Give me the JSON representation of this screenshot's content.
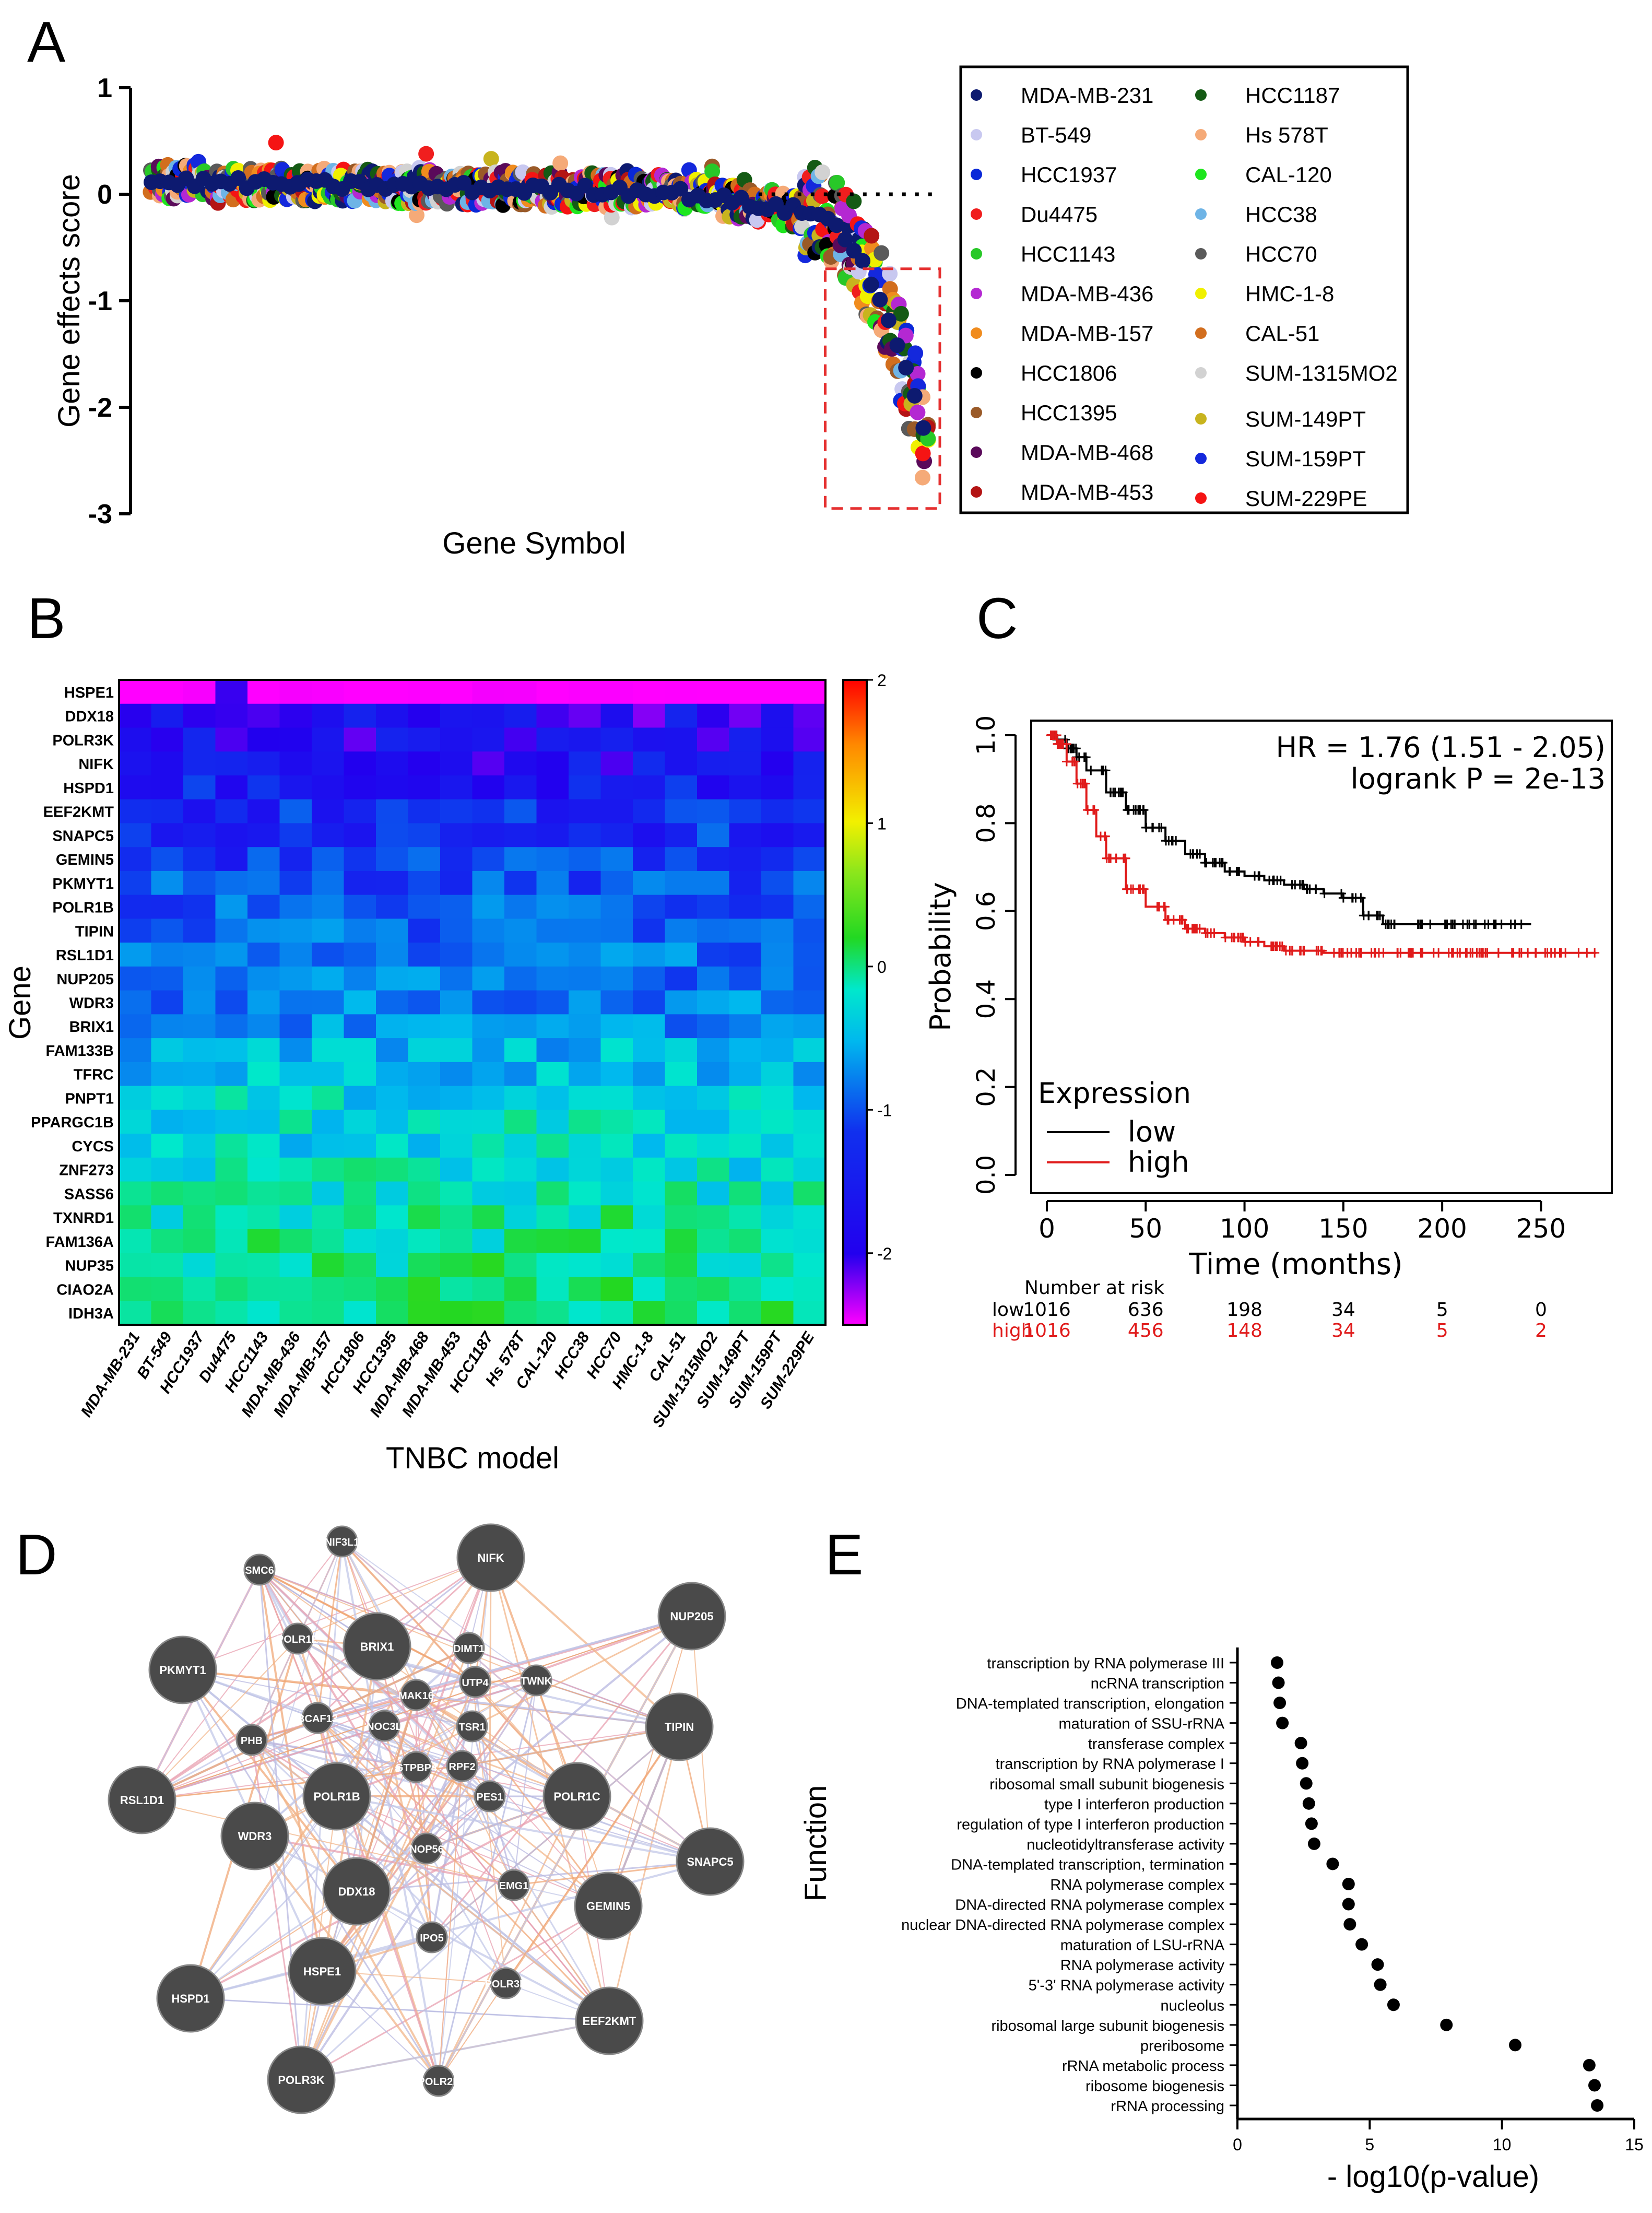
{
  "panels": {
    "a": "A",
    "b": "B",
    "c": "C",
    "d": "D",
    "e": "E"
  },
  "chart_data": [
    {
      "panel": "A",
      "type": "scatter",
      "title": "",
      "xlabel": "Gene Symbol",
      "ylabel": "Gene effects score",
      "ylim": [
        -3,
        1
      ],
      "yticks": [
        "1",
        "0",
        "-1",
        "-2",
        "-3"
      ],
      "n_genes": 180,
      "highlight": {
        "x_from_gene": 162,
        "x_to_gene": 180,
        "y_from": -2.95,
        "y_to": -0.7,
        "color": "#e53030"
      },
      "reference_line_y": 0,
      "legend": [
        {
          "name": "MDA-MB-231",
          "color": "#0d1a70"
        },
        {
          "name": "BT-549",
          "color": "#c8c8f0"
        },
        {
          "name": "HCC1937",
          "color": "#0a28d8"
        },
        {
          "name": "Du4475",
          "color": "#f01e1e"
        },
        {
          "name": "HCC1143",
          "color": "#28c828"
        },
        {
          "name": "MDA-MB-436",
          "color": "#b428d2"
        },
        {
          "name": "MDA-MB-157",
          "color": "#f08c1e"
        },
        {
          "name": "HCC1806",
          "color": "#000000"
        },
        {
          "name": "HCC1395",
          "color": "#9a5a28"
        },
        {
          "name": "MDA-MB-468",
          "color": "#5a0a5a"
        },
        {
          "name": "MDA-MB-453",
          "color": "#b41414"
        },
        {
          "name": "HCC1187",
          "color": "#145a14"
        },
        {
          "name": "Hs 578T",
          "color": "#f5aa78"
        },
        {
          "name": "CAL-120",
          "color": "#1ee61e"
        },
        {
          "name": "HCC38",
          "color": "#6eb4e6"
        },
        {
          "name": "HCC70",
          "color": "#5a5a5a"
        },
        {
          "name": "HMC-1-8",
          "color": "#f0f000"
        },
        {
          "name": "CAL-51",
          "color": "#d26e1e"
        },
        {
          "name": "SUM-1315MO2",
          "color": "#d2d2d2"
        },
        {
          "name": "SUM-149PT",
          "color": "#c8b41e"
        },
        {
          "name": "SUM-159PT",
          "color": "#1428dc"
        },
        {
          "name": "SUM-229PE",
          "color": "#f51414"
        }
      ]
    },
    {
      "panel": "B",
      "type": "heatmap",
      "xlabel": "TNBC model",
      "ylabel": "Gene",
      "colorbar_ticks": [
        "2",
        "1",
        "0",
        "-1",
        "-2"
      ],
      "colorbar_range": [
        -2.5,
        2
      ],
      "rows": [
        "HSPE1",
        "DDX18",
        "POLR3K",
        "NIFK",
        "HSPD1",
        "EEF2KMT",
        "SNAPC5",
        "GEMIN5",
        "PKMYT1",
        "POLR1B",
        "TIPIN",
        "RSL1D1",
        "NUP205",
        "WDR3",
        "BRIX1",
        "FAM133B",
        "TFRC",
        "PNPT1",
        "PPARGC1B",
        "CYCS",
        "ZNF273",
        "SASS6",
        "TXNRD1",
        "FAM136A",
        "NUP35",
        "CIAO2A",
        "IDH3A"
      ],
      "columns": [
        "MDA-MB-231",
        "BT-549",
        "HCC1937",
        "Du4475",
        "HCC1143",
        "MDA-MB-436",
        "MDA-MB-157",
        "HCC1806",
        "HCC1395",
        "MDA-MB-468",
        "MDA-MB-453",
        "HCC1187",
        "Hs 578T",
        "CAL-120",
        "HCC38",
        "HCC70",
        "HMC-1-8",
        "CAL-51",
        "SUM-1315MO2",
        "SUM-149PT",
        "SUM-159PT",
        "SUM-229PE"
      ],
      "row_means": [
        -2.5,
        -1.95,
        -1.9,
        -1.85,
        -1.75,
        -1.65,
        -1.6,
        -1.55,
        -1.45,
        -1.4,
        -1.35,
        -1.3,
        -1.3,
        -1.25,
        -1.2,
        -1.0,
        -0.95,
        -0.85,
        -0.8,
        -0.8,
        -0.75,
        -0.7,
        -0.6,
        -0.6,
        -0.55,
        -0.5,
        -0.45
      ]
    },
    {
      "panel": "C",
      "type": "line",
      "title": "",
      "xlabel": "Time (months)",
      "ylabel": "Probability",
      "xlim": [
        0,
        280
      ],
      "ylim": [
        0,
        1
      ],
      "xticks": [
        "0",
        "50",
        "100",
        "150",
        "200",
        "250"
      ],
      "yticks": [
        "0.0",
        "0.2",
        "0.4",
        "0.6",
        "0.8",
        "1.0"
      ],
      "annotation_hr": "HR = 1.76 (1.51 - 2.05)",
      "annotation_p": "logrank P = 2e-13",
      "legend_title": "Expression",
      "series": [
        {
          "name": "low",
          "color": "#000000",
          "x": [
            0,
            5,
            10,
            15,
            20,
            30,
            40,
            50,
            60,
            70,
            80,
            90,
            100,
            110,
            120,
            130,
            140,
            150,
            160,
            170,
            180,
            200,
            220,
            245
          ],
          "y": [
            1.0,
            0.99,
            0.97,
            0.95,
            0.92,
            0.87,
            0.83,
            0.79,
            0.76,
            0.73,
            0.71,
            0.69,
            0.68,
            0.67,
            0.66,
            0.65,
            0.64,
            0.63,
            0.59,
            0.57,
            0.57,
            0.57,
            0.57,
            0.57
          ]
        },
        {
          "name": "high",
          "color": "#e01b1b",
          "x": [
            0,
            5,
            10,
            15,
            20,
            25,
            30,
            40,
            50,
            60,
            70,
            80,
            90,
            100,
            110,
            120,
            140,
            160,
            200,
            240,
            278
          ],
          "y": [
            1.0,
            0.98,
            0.94,
            0.89,
            0.83,
            0.77,
            0.72,
            0.65,
            0.61,
            0.58,
            0.56,
            0.55,
            0.54,
            0.53,
            0.52,
            0.51,
            0.505,
            0.505,
            0.505,
            0.505,
            0.505
          ]
        }
      ],
      "risk_table": {
        "title": "Number at risk",
        "rows": [
          {
            "label": "low",
            "color": "#000000",
            "values": [
              "1016",
              "636",
              "198",
              "34",
              "5",
              "0"
            ]
          },
          {
            "label": "high",
            "color": "#e01b1b",
            "values": [
              "1016",
              "456",
              "148",
              "34",
              "5",
              "2"
            ]
          }
        ]
      }
    },
    {
      "panel": "D",
      "type": "network",
      "nodes": [
        {
          "name": "NIF3L1",
          "size": "small"
        },
        {
          "name": "SMC6",
          "size": "small"
        },
        {
          "name": "NIFK",
          "size": "large"
        },
        {
          "name": "NUP205",
          "size": "large"
        },
        {
          "name": "PKMYT1",
          "size": "large"
        },
        {
          "name": "POLR1E",
          "size": "small"
        },
        {
          "name": "BRIX1",
          "size": "large"
        },
        {
          "name": "DIMT1",
          "size": "small"
        },
        {
          "name": "UTP4",
          "size": "small"
        },
        {
          "name": "TWNK",
          "size": "small"
        },
        {
          "name": "MAK16",
          "size": "small"
        },
        {
          "name": "TIPIN",
          "size": "large"
        },
        {
          "name": "BCAF13",
          "size": "small"
        },
        {
          "name": "NOC3L",
          "size": "small"
        },
        {
          "name": "TSR1",
          "size": "small"
        },
        {
          "name": "PHB",
          "size": "small"
        },
        {
          "name": "GTPBP4",
          "size": "small"
        },
        {
          "name": "RPF2",
          "size": "small"
        },
        {
          "name": "RSL1D1",
          "size": "large"
        },
        {
          "name": "POLR1B",
          "size": "large"
        },
        {
          "name": "PES1",
          "size": "small"
        },
        {
          "name": "POLR1C",
          "size": "large"
        },
        {
          "name": "WDR3",
          "size": "large"
        },
        {
          "name": "NOP56",
          "size": "small"
        },
        {
          "name": "SNAPC5",
          "size": "large"
        },
        {
          "name": "EMG1",
          "size": "small"
        },
        {
          "name": "DDX18",
          "size": "large"
        },
        {
          "name": "GEMIN5",
          "size": "large"
        },
        {
          "name": "IPO5",
          "size": "small"
        },
        {
          "name": "HSPE1",
          "size": "large"
        },
        {
          "name": "POLR3B",
          "size": "small"
        },
        {
          "name": "HSPD1",
          "size": "large"
        },
        {
          "name": "EEF2KMT",
          "size": "large"
        },
        {
          "name": "POLR3K",
          "size": "large"
        },
        {
          "name": "POLR2L",
          "size": "small"
        }
      ]
    },
    {
      "panel": "E",
      "type": "scatter",
      "title": "",
      "xlabel": "- log10(p-value)",
      "ylabel": "Function",
      "xlim": [
        0,
        15
      ],
      "xticks": [
        "0",
        "5",
        "10",
        "15"
      ],
      "categories": [
        "transcription by RNA polymerase III",
        "ncRNA transcription",
        "DNA-templated transcription, elongation",
        "maturation of SSU-rRNA",
        "transferase complex",
        "transcription by RNA polymerase I",
        "ribosomal small subunit biogenesis",
        "type I interferon production",
        "regulation of type I interferon production",
        "nucleotidyltransferase activity",
        "DNA-templated transcription, termination",
        "RNA polymerase complex",
        "DNA-directed RNA polymerase complex",
        "nuclear DNA-directed RNA polymerase complex",
        "maturation of LSU-rRNA",
        "RNA polymerase activity",
        "5'-3' RNA polymerase activity",
        "nucleolus",
        "ribosomal large subunit biogenesis",
        "preribosome",
        "rRNA metabolic process",
        "ribosome biogenesis",
        "rRNA processing"
      ],
      "values": [
        1.5,
        1.55,
        1.6,
        1.7,
        2.4,
        2.45,
        2.6,
        2.7,
        2.8,
        2.9,
        3.6,
        4.2,
        4.2,
        4.25,
        4.7,
        5.3,
        5.4,
        5.9,
        7.9,
        10.5,
        13.3,
        13.5,
        13.6
      ]
    }
  ]
}
